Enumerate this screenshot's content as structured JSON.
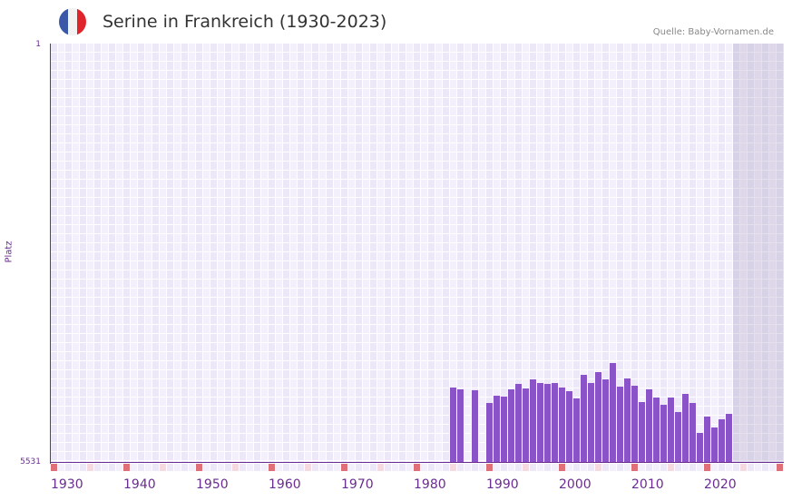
{
  "header": {
    "title": "Serine in Frankreich (1930-2023)",
    "source": "Quelle: Baby-Vornamen.de",
    "flag_icon": "france-flag-icon",
    "flag_colors": [
      "#3a58a8",
      "#f2f2f2",
      "#e0242c"
    ]
  },
  "colors": {
    "bar": "#8a54c8",
    "axis": "#6a2c91",
    "grid_a": "#ece8f8",
    "grid_b": "#f3f0fb",
    "marker_decade": "#e07078",
    "marker_half": "#f5d8e0"
  },
  "chart_data": {
    "type": "bar",
    "title": "Serine in Frankreich (1930-2023)",
    "xlabel": "",
    "ylabel": "Platz",
    "y_axis_inverted": true,
    "ylim": [
      1,
      5531
    ],
    "y_ticks": [
      "1",
      "5531"
    ],
    "x_ticks": [
      "1930",
      "1940",
      "1950",
      "1960",
      "1970",
      "1980",
      "1990",
      "2000",
      "2010",
      "2020"
    ],
    "x_range": [
      1930,
      2030
    ],
    "grid": true,
    "source": "Quelle: Baby-Vornamen.de",
    "categories": [
      1985,
      1986,
      1987,
      1988,
      1989,
      1990,
      1991,
      1992,
      1993,
      1994,
      1995,
      1996,
      1997,
      1998,
      1999,
      2000,
      2001,
      2002,
      2003,
      2004,
      2005,
      2006,
      2007,
      2008,
      2009,
      2010,
      2011,
      2012,
      2013,
      2014,
      2015,
      2016,
      2017,
      2018,
      2019,
      2020,
      2021,
      2022,
      2023
    ],
    "values": [
      4540,
      4564,
      null,
      4576,
      null,
      4743,
      4647,
      4659,
      4564,
      4492,
      4552,
      4432,
      4480,
      4492,
      4480,
      4540,
      4588,
      4683,
      4373,
      4480,
      4337,
      4432,
      4217,
      4528,
      4420,
      4516,
      4731,
      4564,
      4671,
      4767,
      4671,
      4862,
      4624,
      4743,
      5137,
      4922,
      5065,
      4958,
      4886
    ]
  }
}
